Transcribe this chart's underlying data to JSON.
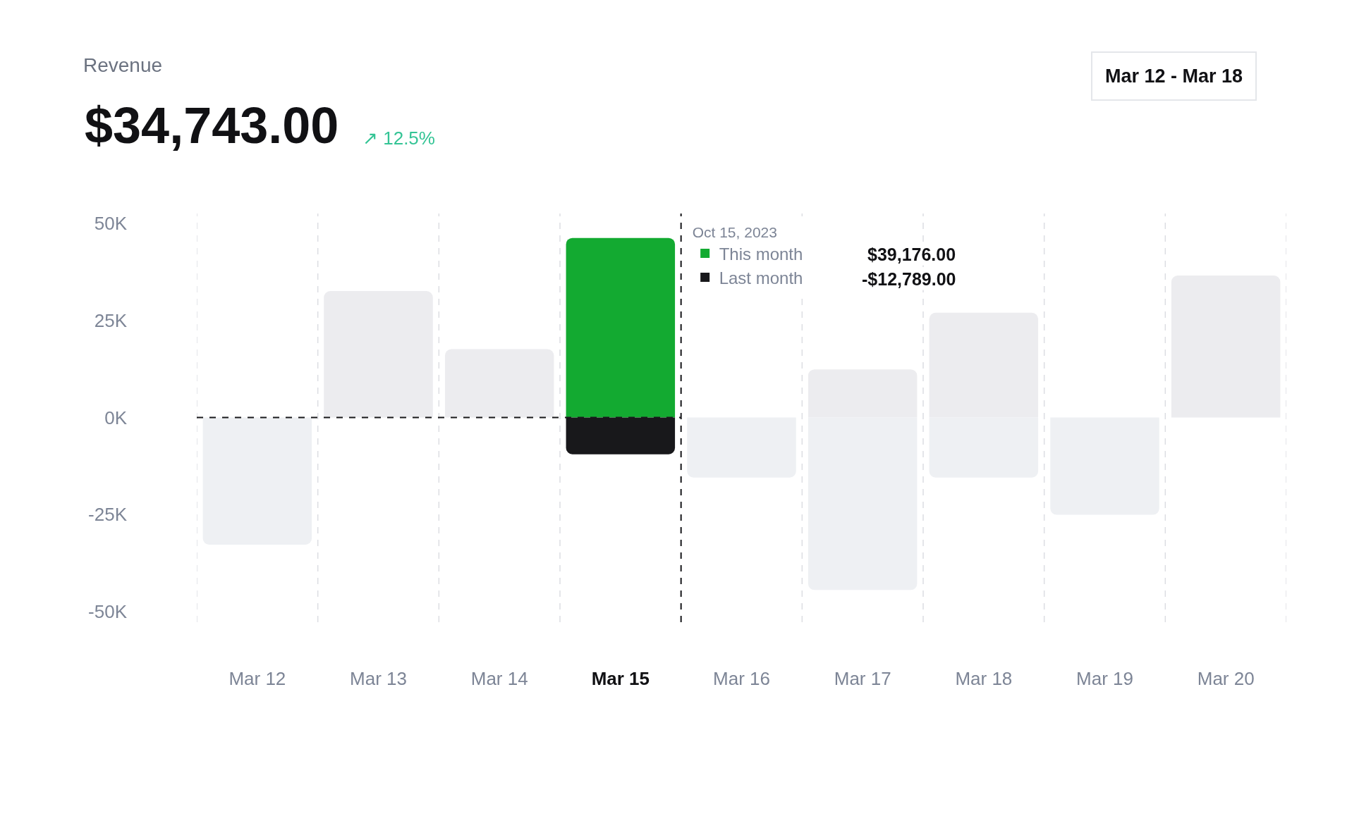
{
  "chart_data": {
    "type": "bar",
    "title": "Revenue",
    "subtitle": "$34,743.00",
    "annotations": [
      "↗ 12.5%",
      "Mar 12 - Mar 18",
      "$39,176.00",
      "-$12,789.00"
    ],
    "legend_title": "Oct 15, 2023",
    "categories": [
      "Mar 12",
      "Mar 13",
      "Mar 14",
      "Mar 15",
      "Mar 16",
      "Mar 17",
      "Mar 18",
      "Mar 19",
      "Mar 20"
    ],
    "series": [
      {
        "name": "This month",
        "color": "#13aa31",
        "colors": [
          "#ececef",
          "#ececef",
          "#ececef",
          "#13aa31",
          "#ececef",
          "#ececef",
          "#ececef",
          "#ececef",
          "#ececef"
        ],
        "values": [
          null,
          32600,
          17600,
          46300,
          null,
          12400,
          27000,
          null,
          36600
        ]
      },
      {
        "name": "Last month",
        "color": "#18181b",
        "colors": [
          "#eef0f3",
          "#eef0f3",
          "#eef0f3",
          "#18181b",
          "#eef0f3",
          "#eef0f3",
          "#eef0f3",
          "#eef0f3",
          "#eef0f3"
        ],
        "values": [
          -32800,
          null,
          null,
          -9500,
          -15500,
          -44500,
          -15500,
          -25100,
          null
        ]
      }
    ],
    "ylim": [
      -52800,
      52600
    ],
    "yticks": [
      {
        "value": 50000,
        "label": "50K"
      },
      {
        "value": 25000,
        "label": "25K"
      },
      {
        "value": 0,
        "label": "0K"
      },
      {
        "value": -25000,
        "label": "-25K"
      },
      {
        "value": -50000,
        "label": "-50K"
      }
    ],
    "grid": "x",
    "legend": "top",
    "ref_lines": [
      {
        "axis": "y",
        "value": 0,
        "color": "#18181b",
        "line_style": "dashed"
      },
      {
        "axis": "x",
        "value": "Mar 15",
        "color": "#18181b",
        "line_style": "dashed"
      }
    ]
  }
}
